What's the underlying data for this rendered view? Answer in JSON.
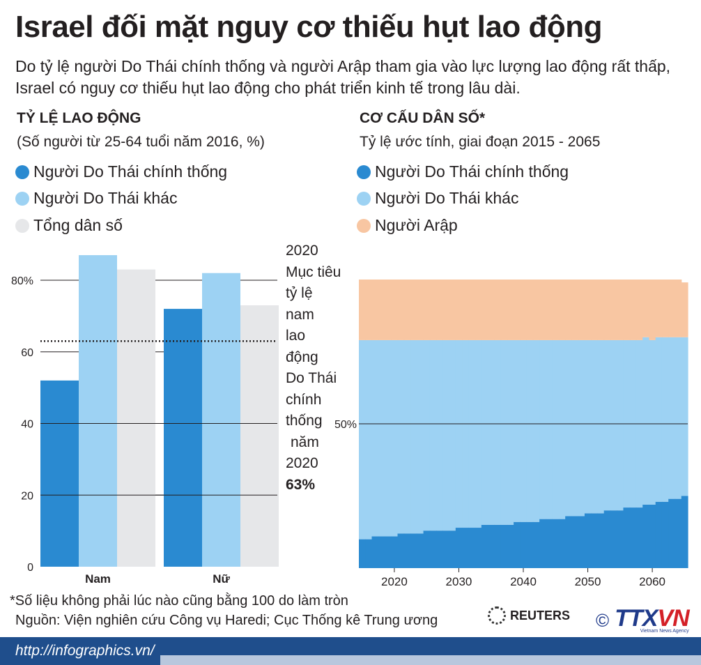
{
  "header": {
    "title": "Israel đối mặt nguy cơ thiếu hụt lao động",
    "subtitle": "Do tỷ lệ người Do Thái chính thống và người Arập tham gia vào lực lượng lao động rất thấp, Israel có nguy cơ thiếu hụt lao động cho phát triển kinh tế trong lâu dài."
  },
  "left": {
    "title": "TỶ LỆ LAO ĐỘNG",
    "subtitle": "(Số người từ 25-64 tuổi năm 2016, %)",
    "legend": [
      {
        "label": "Người Do Thái chính thống",
        "color": "#2a8ad1"
      },
      {
        "label": "Người Do Thái khác",
        "color": "#9dd2f3"
      },
      {
        "label": "Tổng dân số",
        "color": "#e6e7e9"
      }
    ],
    "annotation": {
      "lines": [
        "2020",
        "Mục tiêu",
        "tỷ lệ nam",
        "lao động",
        "Do Thái",
        "chính",
        "thống",
        "năm",
        "2020"
      ],
      "value": "63%"
    }
  },
  "right": {
    "title": "CƠ CẤU DÂN SỐ*",
    "subtitle": "Tỷ lệ ước tính, giai đoạn 2015 - 2065",
    "legend": [
      {
        "label": "Người Do Thái chính thống",
        "color": "#2a8ad1"
      },
      {
        "label": "Người Do Thái khác",
        "color": "#9dd2f3"
      },
      {
        "label": "Người Arập",
        "color": "#f8c6a2"
      }
    ]
  },
  "chart_data": [
    {
      "type": "bar",
      "categories": [
        "Nam",
        "Nữ"
      ],
      "series": [
        {
          "name": "Người Do Thái chính thống",
          "values": [
            52,
            72
          ]
        },
        {
          "name": "Người Do Thái khác",
          "values": [
            87,
            82
          ]
        },
        {
          "name": "Tổng dân số",
          "values": [
            83,
            73
          ]
        }
      ],
      "ylim": [
        0,
        85
      ],
      "yticks": [
        0,
        20,
        40,
        60,
        "80%"
      ],
      "reference_line": {
        "value": 63,
        "style": "dotted"
      }
    },
    {
      "type": "area",
      "stacked": true,
      "x": [
        2015,
        2016,
        2017,
        2018,
        2019,
        2020,
        2021,
        2022,
        2023,
        2024,
        2025,
        2026,
        2027,
        2028,
        2029,
        2030,
        2031,
        2032,
        2033,
        2034,
        2035,
        2036,
        2037,
        2038,
        2039,
        2040,
        2041,
        2042,
        2043,
        2044,
        2045,
        2046,
        2047,
        2048,
        2049,
        2050,
        2051,
        2052,
        2053,
        2054,
        2055,
        2056,
        2057,
        2058,
        2059,
        2060,
        2061,
        2062,
        2063,
        2064,
        2065
      ],
      "series": [
        {
          "name": "Người Do Thái chính thống",
          "values": [
            10,
            10,
            11,
            11,
            11,
            11,
            12,
            12,
            12,
            12,
            13,
            13,
            13,
            13,
            13,
            14,
            14,
            14,
            14,
            15,
            15,
            15,
            15,
            15,
            16,
            16,
            16,
            16,
            17,
            17,
            17,
            17,
            18,
            18,
            18,
            19,
            19,
            19,
            20,
            20,
            20,
            21,
            21,
            21,
            22,
            22,
            23,
            23,
            24,
            24,
            25
          ]
        },
        {
          "name": "Người Do Thái khác",
          "values": [
            69,
            69,
            68,
            68,
            68,
            68,
            67,
            67,
            67,
            67,
            66,
            66,
            66,
            66,
            66,
            65,
            65,
            65,
            65,
            64,
            64,
            64,
            64,
            64,
            63,
            63,
            63,
            63,
            62,
            62,
            62,
            62,
            61,
            61,
            61,
            60,
            60,
            60,
            59,
            59,
            59,
            58,
            58,
            58,
            58,
            57,
            57,
            57,
            56,
            56,
            55
          ]
        },
        {
          "name": "Người Arập",
          "values": [
            21,
            21,
            21,
            21,
            21,
            21,
            21,
            21,
            21,
            21,
            21,
            21,
            21,
            21,
            21,
            21,
            21,
            21,
            21,
            21,
            21,
            21,
            21,
            21,
            21,
            21,
            21,
            21,
            21,
            21,
            21,
            21,
            21,
            21,
            21,
            21,
            21,
            21,
            21,
            21,
            21,
            21,
            21,
            21,
            20,
            21,
            20,
            20,
            20,
            20,
            19
          ]
        }
      ],
      "xticks": [
        2020,
        2030,
        2040,
        2050,
        2060
      ],
      "ylim": [
        0,
        100
      ],
      "reference_line": {
        "value": 50,
        "label": "50%"
      }
    }
  ],
  "footnote": "*Số liệu không phải lúc nào cũng bằng 100 do làm tròn",
  "source": "Nguồn: Viện nghiên cứu Công vụ Haredi; Cục Thống kê Trung ương",
  "credits": {
    "reuters": "REUTERS",
    "copyright": "©",
    "ttxvn_a": "TTX",
    "ttxvn_b": "VN",
    "agency": "Vietnam News Agency"
  },
  "footer": {
    "url": "http://infographics.vn/"
  }
}
